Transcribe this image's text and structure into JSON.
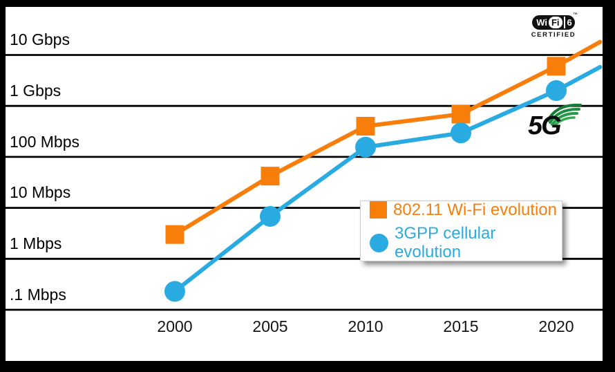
{
  "chart_data": {
    "type": "line",
    "y_scale": "log",
    "y_unit": "Mbps",
    "grid": "horizontal",
    "legend_position": "center-right",
    "y_ticks": [
      {
        "label": "10 Gbps",
        "mbps": 10000
      },
      {
        "label": "1 Gbps",
        "mbps": 1000
      },
      {
        "label": "100 Mbps",
        "mbps": 100
      },
      {
        "label": "10 Mbps",
        "mbps": 10
      },
      {
        "label": "1 Mbps",
        "mbps": 1
      },
      {
        "label": ".1 Mbps",
        "mbps": 0.1
      }
    ],
    "x_tick_labels": [
      "2000",
      "2005",
      "2010",
      "2015",
      "2020"
    ],
    "series": [
      {
        "name": "802.11 Wi-Fi evolution",
        "color": "#F77E0B",
        "marker": "square",
        "points": [
          {
            "year": 2000,
            "mbps": 3
          },
          {
            "year": 2005,
            "mbps": 42
          },
          {
            "year": 2010,
            "mbps": 400
          },
          {
            "year": 2015,
            "mbps": 690
          },
          {
            "year": 2020,
            "mbps": 6000
          },
          {
            "year": 2022.3,
            "mbps": 18000,
            "marker": false
          }
        ]
      },
      {
        "name": "3GPP cellular evolution",
        "color": "#29ABE2",
        "marker": "circle",
        "points": [
          {
            "year": 2000,
            "mbps": 0.23
          },
          {
            "year": 2005,
            "mbps": 6.8
          },
          {
            "year": 2010,
            "mbps": 155
          },
          {
            "year": 2015,
            "mbps": 295
          },
          {
            "year": 2020,
            "mbps": 2000
          },
          {
            "year": 2022.3,
            "mbps": 5800,
            "marker": false
          }
        ]
      }
    ]
  },
  "logos": {
    "wifi6": {
      "wi": "Wi",
      "fi": "Fi",
      "six": "6",
      "tm": "™",
      "certified": "CERTIFIED"
    },
    "fiveg": {
      "label": "5G"
    }
  },
  "colors": {
    "wifi_orange": "#F77E0B",
    "cellular_blue": "#29ABE2",
    "grid": "#000000",
    "frame": "#000000",
    "plot_bg": "#FFFFFF",
    "fiveg_green": "#1E9E46"
  }
}
